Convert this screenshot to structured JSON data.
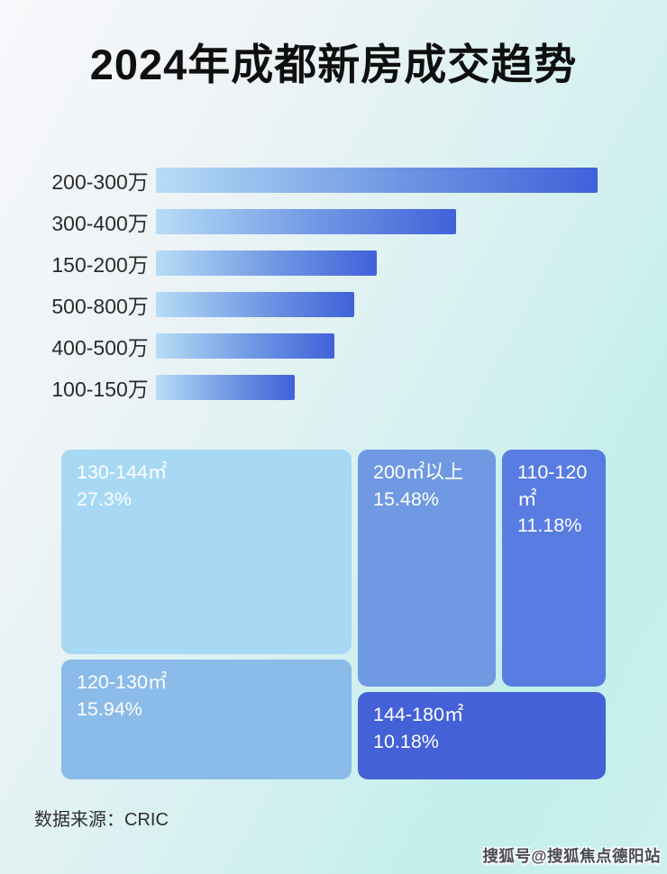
{
  "title": "2024年成都新房成交趋势",
  "colors": {
    "bar_gradient_start": "#b6ddf5",
    "bar_gradient_end": "#4061da",
    "background_top_left": "#f7f8fb",
    "background_bottom_right": "#c2efeb",
    "treemap_text": "#ffffff"
  },
  "chart_data": [
    {
      "type": "bar",
      "orientation": "horizontal",
      "title": "",
      "categories": [
        "200-300万",
        "300-400万",
        "150-200万",
        "500-800万",
        "400-500万",
        "100-150万"
      ],
      "values_relative_pct": [
        100,
        68,
        50,
        45,
        40.5,
        31.5
      ],
      "value_labels_shown": false,
      "note": "bar lengths estimated from pixels relative to longest bar; no axis or numeric labels are displayed",
      "xlabel": "",
      "ylabel": "",
      "grid": false,
      "legend": false
    },
    {
      "type": "treemap",
      "title": "",
      "items": [
        {
          "label": "130-144㎡",
          "value": 27.3,
          "value_pct": "27.3%",
          "color": "#a7d9f4"
        },
        {
          "label": "120-130㎡",
          "value": 15.94,
          "value_pct": "15.94%",
          "color": "#8abbe9"
        },
        {
          "label": "200㎡以上",
          "value": 15.48,
          "value_pct": "15.48%",
          "color": "#6f99e2"
        },
        {
          "label": "110-120㎡",
          "value": 11.18,
          "value_pct": "11.18%",
          "color": "#587ce2"
        },
        {
          "label": "144-180㎡",
          "value": 10.18,
          "value_pct": "10.18%",
          "color": "#4561d8"
        }
      ],
      "legend": false
    }
  ],
  "footer": {
    "source_label": "数据来源：CRIC"
  },
  "watermark": "搜狐号@搜狐焦点德阳站"
}
